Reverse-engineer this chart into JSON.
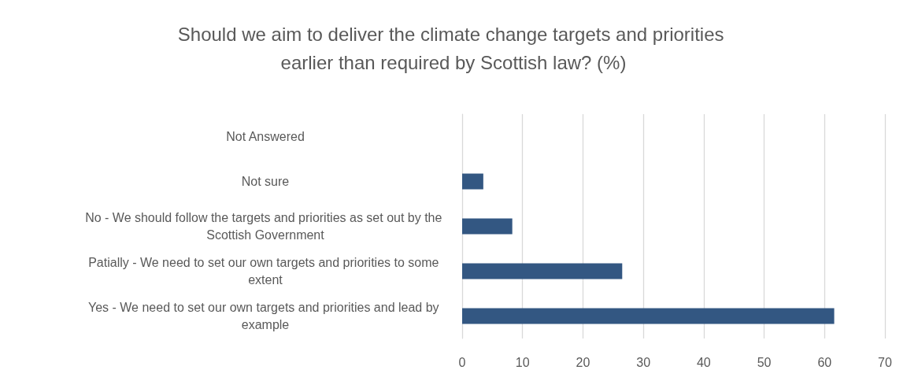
{
  "chart_data": {
    "type": "bar",
    "orientation": "horizontal",
    "title": "Should we aim to deliver the climate change targets and priorities earlier than required by Scottish law? (%)",
    "categories": [
      "Not Answered",
      "Not sure",
      "No - We should follow the targets and priorities as set out by the Scottish Government",
      "Patially - We need to set our own targets and priorities to some extent",
      "Yes - We need to set our own targets and priorities and lead by example"
    ],
    "values": [
      0,
      3.5,
      8.3,
      26.5,
      61.6
    ],
    "color": "#335782",
    "xlim": [
      0,
      70
    ],
    "xticks": [
      0,
      10,
      20,
      30,
      40,
      50,
      60,
      70
    ],
    "grid": "x"
  }
}
